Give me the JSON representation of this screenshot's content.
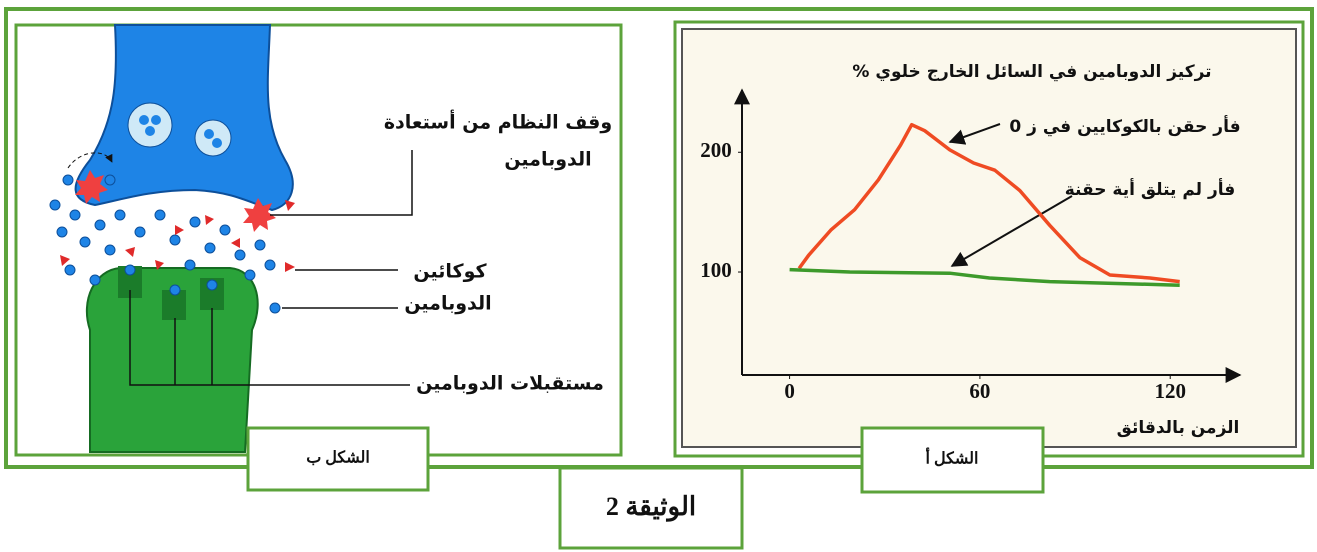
{
  "document_label": "الوثيقة 2",
  "figure_a_label": "الشكل أ",
  "figure_b": {
    "label": "الشكل ب",
    "reuptake_stop": [
      "وقف  النظام من أستعادة",
      "الدوبامين"
    ],
    "cocaine": "كوكائين",
    "dopamine": "الدوبامين",
    "receptors": "مستقبلات الدوبامين"
  },
  "chart_data": {
    "type": "line",
    "title": "% تركيز الدوبامين في السائل الخارج خلوي",
    "x_label": "الزمن بالدقائق",
    "xlim": [
      -15,
      142
    ],
    "ylim": [
      14,
      252
    ],
    "xticks": [
      0,
      60,
      120
    ],
    "yticks": [
      100,
      200
    ],
    "series": [
      {
        "name": "فأر حقن بالكوكايين في ز 0",
        "color": "#ef4b23",
        "x": [
          3,
          6,
          13,
          20.5,
          28,
          35,
          38.5,
          42.6,
          50.5,
          58,
          64.7,
          72.6,
          82,
          91.5,
          101,
          113.6,
          123
        ],
        "values": [
          103,
          114,
          135,
          152,
          177,
          206,
          223,
          218,
          202,
          191,
          185,
          168,
          139,
          112,
          97.5,
          95,
          92
        ]
      },
      {
        "name": "فأر لم يتلق أية حقنة",
        "color": "#3d9a2b",
        "x": [
          0,
          19,
          50.5,
          63,
          82,
          123
        ],
        "values": [
          102,
          100,
          99,
          95,
          92,
          89
        ]
      }
    ]
  }
}
